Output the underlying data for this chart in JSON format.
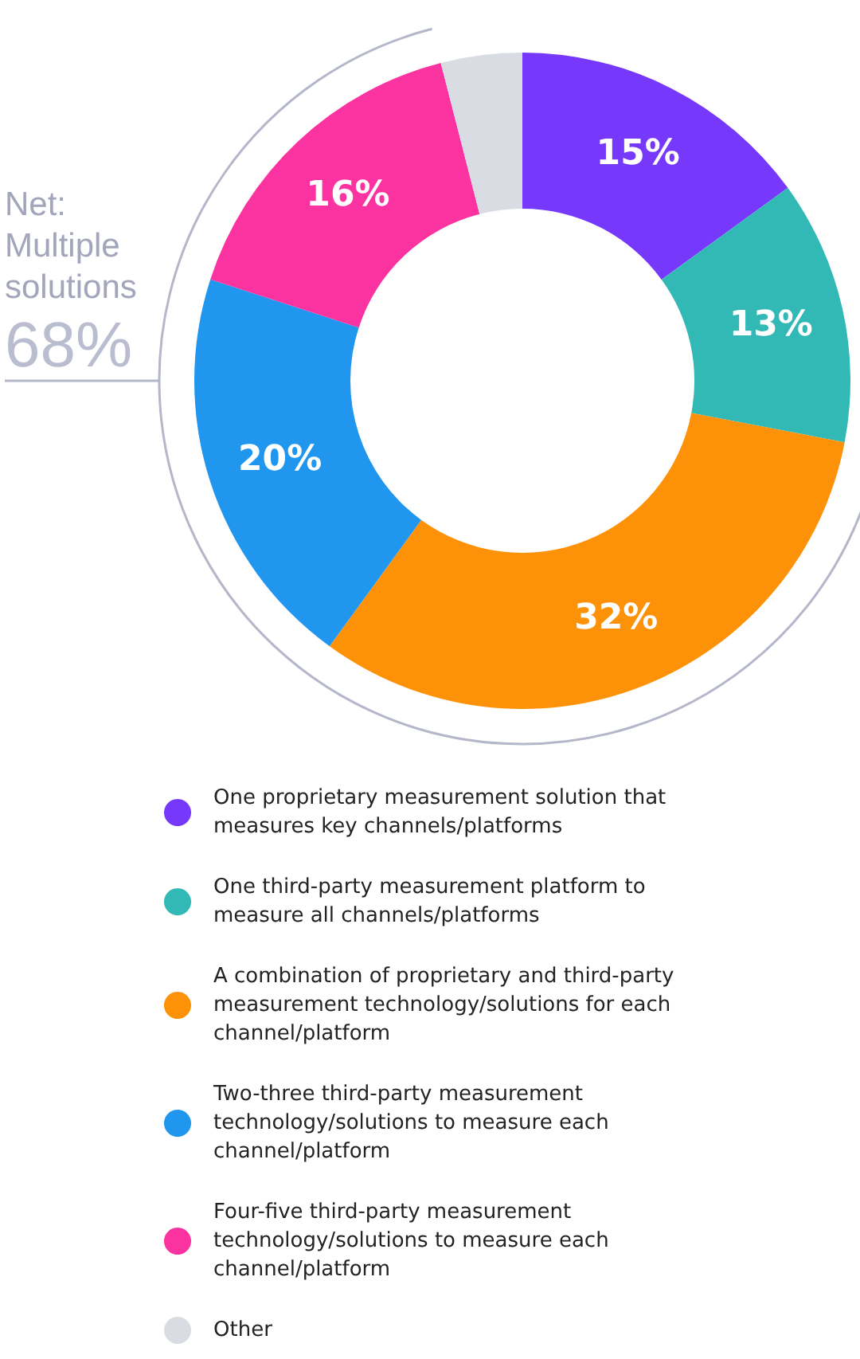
{
  "chart_data": {
    "type": "donut",
    "categories": [
      "One proprietary measurement solution that measures key channels/platforms",
      "One third-party measurement platform to measure all channels/platforms",
      "A combination of proprietary and third-party measurement technology/solutions for each channel/platform",
      "Two-three third-party measurement technology/solutions to measure each channel/platform",
      "Four-five third-party measurement technology/solutions to measure each channel/platform",
      "Other"
    ],
    "values": [
      15,
      13,
      32,
      20,
      16,
      4
    ],
    "colors": [
      "#7638fa",
      "#33b9b5",
      "#fd9208",
      "#2196ee",
      "#fb33a0",
      "#d9dce3"
    ],
    "value_labels": [
      "15%",
      "13%",
      "32%",
      "20%",
      "16%",
      null
    ],
    "legend": "bottom",
    "annotations": [
      "Net: Multiple solutions",
      "68%"
    ]
  }
}
